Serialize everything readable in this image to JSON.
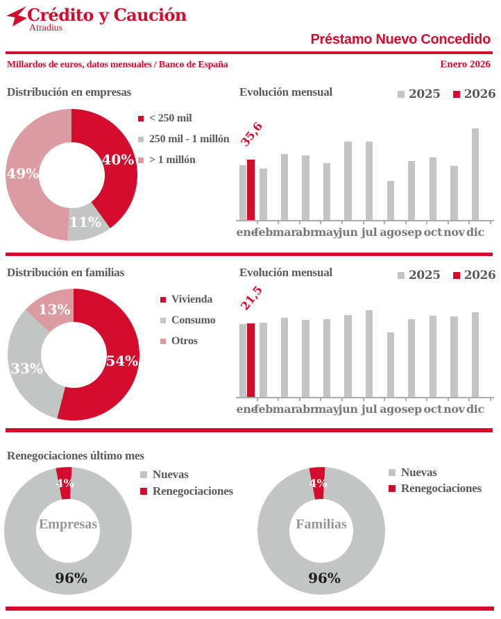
{
  "header": {
    "brand_name": "Crédito y Caución",
    "brand_sub": "Atradius",
    "report_title": "Préstamo Nuevo Concedido",
    "unit_note": "Millardos de euros, datos mensuales / Banco de España",
    "period": "Enero 2026"
  },
  "colors": {
    "red": "#d30b2c",
    "gray": "#c3c4c4",
    "pink": "#dc9ba1",
    "heading_text": "#58585a",
    "axis_label_text": "#77787a",
    "center_label_text": "#939598",
    "dark_label_text": "#1d1d1b"
  },
  "icons": {
    "brand_logo": "swallow-bird-icon"
  },
  "sections": {
    "empresas": {
      "title": "Distribución en empresas",
      "evolution_title": "Evolución mensual"
    },
    "familias": {
      "title": "Distribución en familias",
      "evolution_title": "Evolución mensual"
    },
    "renegociaciones": {
      "title": "Renegociaciones último mes"
    }
  },
  "chart_data": [
    {
      "id": "donut-empresas",
      "type": "pie",
      "donut": true,
      "title": "Distribución en empresas",
      "start_angle": 0,
      "legend_position": "right",
      "slices": [
        {
          "label": "< 250 mil",
          "value": 40,
          "display": "40%",
          "color": "#d30b2c"
        },
        {
          "label": "250 mil - 1 millón",
          "value": 11,
          "display": "11%",
          "color": "#c3c4c4"
        },
        {
          "label": "> 1 millón",
          "value": 49,
          "display": "49%",
          "color": "#dc9ba1"
        }
      ]
    },
    {
      "id": "bar-empresas",
      "type": "bar",
      "title": "Evolución mensual",
      "categories": [
        "ene",
        "feb",
        "mar",
        "abr",
        "may",
        "jun",
        "jul",
        "ago",
        "sep",
        "oct",
        "nov",
        "dic"
      ],
      "series": [
        {
          "name": "2025",
          "color": "#c3c4c4",
          "values": [
            32.2,
            30.0,
            38.8,
            37.8,
            33.4,
            46.2,
            45.9,
            22.7,
            34.5,
            36.8,
            31.7,
            53.9
          ]
        },
        {
          "name": "2026",
          "color": "#d30b2c",
          "values": [
            35.6,
            null,
            null,
            null,
            null,
            null,
            null,
            null,
            null,
            null,
            null,
            null
          ]
        }
      ],
      "annotation": {
        "text": "35,6",
        "series": "2026",
        "category": "ene"
      },
      "ylim": [
        0,
        68
      ],
      "gridlines": false,
      "legend_position": "top-right"
    },
    {
      "id": "donut-familias",
      "type": "pie",
      "donut": true,
      "title": "Distribución en familias",
      "start_angle": 0,
      "legend_position": "right",
      "slices": [
        {
          "label": "Vivienda",
          "value": 54,
          "display": "54%",
          "color": "#d30b2c"
        },
        {
          "label": "Consumo",
          "value": 33,
          "display": "33%",
          "color": "#c3c4c4"
        },
        {
          "label": "Otros",
          "value": 13,
          "display": "13%",
          "color": "#dc9ba1"
        }
      ]
    },
    {
      "id": "bar-familias",
      "type": "bar",
      "title": "Evolución mensual",
      "categories": [
        "ene",
        "feb",
        "mar",
        "abr",
        "may",
        "jun",
        "jul",
        "ago",
        "sep",
        "oct",
        "nov",
        "dic"
      ],
      "series": [
        {
          "name": "2025",
          "color": "#c3c4c4",
          "values": [
            21.3,
            21.8,
            23.3,
            22.7,
            22.8,
            24.1,
            25.5,
            18.9,
            22.8,
            23.9,
            23.7,
            24.9
          ]
        },
        {
          "name": "2026",
          "color": "#d30b2c",
          "values": [
            21.5,
            null,
            null,
            null,
            null,
            null,
            null,
            null,
            null,
            null,
            null,
            null
          ]
        }
      ],
      "annotation": {
        "text": "21,5",
        "series": "2026",
        "category": "ene"
      },
      "ylim": [
        0,
        34
      ],
      "gridlines": false,
      "legend_position": "top-right"
    },
    {
      "id": "donut-reneg-empresas",
      "type": "pie",
      "donut": true,
      "title": "Renegociaciones último mes",
      "center_label": "Empresas",
      "start_angle": 3.4,
      "legend_position": "right",
      "slices": [
        {
          "label": "Nuevas",
          "value": 96,
          "display": "96%",
          "color": "#c3c4c4",
          "label_color": "#1d1d1b"
        },
        {
          "label": "Renegociaciones",
          "value": 4,
          "display": "4%",
          "color": "#d30b2c",
          "label_size": 16
        }
      ]
    },
    {
      "id": "donut-reneg-familias",
      "type": "pie",
      "donut": true,
      "title": "Renegociaciones último mes",
      "center_label": "Familias",
      "start_angle": 3.4,
      "legend_position": "right",
      "slices": [
        {
          "label": "Nuevas",
          "value": 96,
          "display": "96%",
          "color": "#c3c4c4",
          "label_color": "#1d1d1b"
        },
        {
          "label": "Renegociaciones",
          "value": 4,
          "display": "4%",
          "color": "#d30b2c",
          "label_size": 16
        }
      ]
    }
  ]
}
